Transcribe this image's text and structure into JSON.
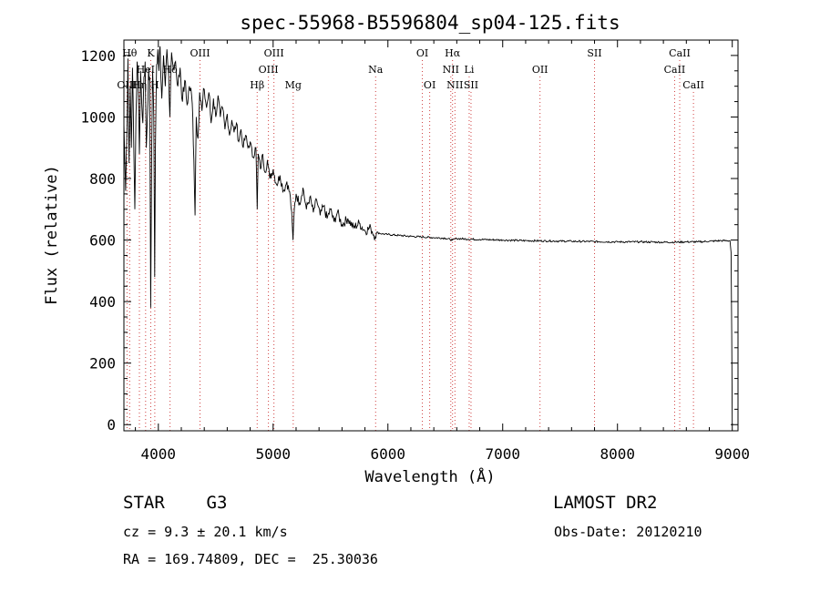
{
  "chart_data": {
    "type": "line",
    "title": "spec-55968-B5596804_sp04-125.fits",
    "xlabel": "Wavelength (Å)",
    "ylabel": "Flux (relative)",
    "xlim": [
      3700,
      9050
    ],
    "ylim": [
      -20,
      1250
    ],
    "xticks": [
      4000,
      5000,
      6000,
      7000,
      8000,
      9000
    ],
    "yticks": [
      0,
      200,
      400,
      600,
      800,
      1000,
      1200
    ],
    "grid": false,
    "series": [
      {
        "points": [
          [
            3700,
            980
          ],
          [
            3715,
            760
          ],
          [
            3725,
            930
          ],
          [
            3735,
            1190
          ],
          [
            3745,
            850
          ],
          [
            3755,
            1100
          ],
          [
            3765,
            900
          ],
          [
            3775,
            1160
          ],
          [
            3785,
            930
          ],
          [
            3795,
            700
          ],
          [
            3805,
            1000
          ],
          [
            3815,
            1180
          ],
          [
            3825,
            1100
          ],
          [
            3835,
            880
          ],
          [
            3845,
            1150
          ],
          [
            3855,
            1050
          ],
          [
            3865,
            980
          ],
          [
            3875,
            1130
          ],
          [
            3885,
            1180
          ],
          [
            3895,
            900
          ],
          [
            3905,
            1000
          ],
          [
            3915,
            1160
          ],
          [
            3925,
            1130
          ],
          [
            3933,
            380
          ],
          [
            3942,
            900
          ],
          [
            3950,
            1150
          ],
          [
            3960,
            1000
          ],
          [
            3968,
            480
          ],
          [
            3975,
            900
          ],
          [
            3985,
            1170
          ],
          [
            3995,
            1220
          ],
          [
            4005,
            1150
          ],
          [
            4015,
            1230
          ],
          [
            4030,
            1060
          ],
          [
            4045,
            1200
          ],
          [
            4060,
            1100
          ],
          [
            4075,
            1220
          ],
          [
            4090,
            1140
          ],
          [
            4101,
            1000
          ],
          [
            4115,
            1210
          ],
          [
            4130,
            1160
          ],
          [
            4150,
            1180
          ],
          [
            4170,
            1100
          ],
          [
            4190,
            1160
          ],
          [
            4210,
            1050
          ],
          [
            4230,
            1120
          ],
          [
            4250,
            1040
          ],
          [
            4270,
            1100
          ],
          [
            4290,
            1070
          ],
          [
            4300,
            1000
          ],
          [
            4310,
            860
          ],
          [
            4320,
            680
          ],
          [
            4330,
            1000
          ],
          [
            4345,
            930
          ],
          [
            4360,
            1080
          ],
          [
            4380,
            1020
          ],
          [
            4400,
            1090
          ],
          [
            4420,
            1030
          ],
          [
            4440,
            1080
          ],
          [
            4460,
            980
          ],
          [
            4480,
            1060
          ],
          [
            4500,
            1000
          ],
          [
            4520,
            1070
          ],
          [
            4540,
            1000
          ],
          [
            4560,
            1030
          ],
          [
            4580,
            960
          ],
          [
            4600,
            1010
          ],
          [
            4620,
            940
          ],
          [
            4640,
            990
          ],
          [
            4660,
            950
          ],
          [
            4680,
            980
          ],
          [
            4700,
            920
          ],
          [
            4720,
            960
          ],
          [
            4740,
            900
          ],
          [
            4760,
            940
          ],
          [
            4780,
            900
          ],
          [
            4800,
            920
          ],
          [
            4820,
            870
          ],
          [
            4850,
            900
          ],
          [
            4861,
            700
          ],
          [
            4870,
            880
          ],
          [
            4890,
            830
          ],
          [
            4910,
            880
          ],
          [
            4930,
            820
          ],
          [
            4950,
            860
          ],
          [
            4970,
            800
          ],
          [
            5000,
            830
          ],
          [
            5030,
            780
          ],
          [
            5060,
            810
          ],
          [
            5090,
            760
          ],
          [
            5120,
            790
          ],
          [
            5150,
            740
          ],
          [
            5167,
            650
          ],
          [
            5173,
            600
          ],
          [
            5184,
            700
          ],
          [
            5200,
            750
          ],
          [
            5230,
            720
          ],
          [
            5260,
            770
          ],
          [
            5290,
            700
          ],
          [
            5320,
            740
          ],
          [
            5350,
            690
          ],
          [
            5380,
            730
          ],
          [
            5410,
            680
          ],
          [
            5440,
            710
          ],
          [
            5470,
            670
          ],
          [
            5500,
            700
          ],
          [
            5530,
            660
          ],
          [
            5560,
            690
          ],
          [
            5600,
            650
          ],
          [
            5650,
            670
          ],
          [
            5700,
            640
          ],
          [
            5750,
            655
          ],
          [
            5800,
            630
          ],
          [
            5850,
            640
          ],
          [
            5890,
            610
          ],
          [
            5900,
            625
          ],
          [
            5950,
            620
          ],
          [
            6000,
            618
          ],
          [
            6100,
            615
          ],
          [
            6200,
            612
          ],
          [
            6300,
            610
          ],
          [
            6400,
            608
          ],
          [
            6500,
            606
          ],
          [
            6563,
            600
          ],
          [
            6600,
            605
          ],
          [
            6700,
            603
          ],
          [
            6800,
            602
          ],
          [
            7000,
            600
          ],
          [
            7200,
            598
          ],
          [
            7400,
            597
          ],
          [
            7600,
            596
          ],
          [
            7800,
            595
          ],
          [
            8000,
            594
          ],
          [
            8200,
            594
          ],
          [
            8400,
            593
          ],
          [
            8500,
            593
          ],
          [
            8600,
            594
          ],
          [
            8700,
            594
          ],
          [
            8800,
            596
          ],
          [
            8900,
            598
          ],
          [
            8980,
            598
          ],
          [
            8990,
            560
          ],
          [
            8995,
            300
          ],
          [
            9000,
            0
          ]
        ]
      }
    ],
    "lines": [
      {
        "label": "Hθ",
        "x": 3750,
        "row": 0
      },
      {
        "label": "K",
        "x": 3934,
        "row": 0
      },
      {
        "label": "HeI",
        "x": 3889,
        "row": 1
      },
      {
        "label": "Hδ",
        "x": 4102,
        "row": 1
      },
      {
        "label": "OIII",
        "x": 3727,
        "row": 2
      },
      {
        "label": "Hη",
        "x": 3835,
        "row": 2
      },
      {
        "label": "H",
        "x": 3969,
        "row": 2
      },
      {
        "label": "OIII",
        "x": 4363,
        "row": 0
      },
      {
        "label": "OIII",
        "x": 5007,
        "row": 0
      },
      {
        "label": "OIII",
        "x": 4959,
        "row": 1
      },
      {
        "label": "Hβ",
        "x": 4861,
        "row": 2
      },
      {
        "label": "Mg",
        "x": 5175,
        "row": 2
      },
      {
        "label": "Na",
        "x": 5893,
        "row": 1
      },
      {
        "label": "OI",
        "x": 6300,
        "row": 0
      },
      {
        "label": "OI",
        "x": 6364,
        "row": 2
      },
      {
        "label": "Hα",
        "x": 6563,
        "row": 0
      },
      {
        "label": "NII",
        "x": 6548,
        "row": 1
      },
      {
        "label": "NII",
        "x": 6584,
        "row": 2
      },
      {
        "label": "Li",
        "x": 6708,
        "row": 1
      },
      {
        "label": "SII",
        "x": 6724,
        "row": 2
      },
      {
        "label": "OII",
        "x": 7325,
        "row": 1
      },
      {
        "label": "SII",
        "x": 7800,
        "row": 0
      },
      {
        "label": "CaII",
        "x": 8542,
        "row": 0
      },
      {
        "label": "CaII",
        "x": 8498,
        "row": 1
      },
      {
        "label": "CaII",
        "x": 8662,
        "row": 2
      }
    ]
  },
  "info": {
    "class_line": "STAR    G3",
    "cz_line": "cz = 9.3 ± 20.1 km/s",
    "radec_line": "RA = 169.74809, DEC =  25.30036",
    "survey": "LAMOST DR2",
    "obs_date": "Obs-Date: 20120210"
  }
}
